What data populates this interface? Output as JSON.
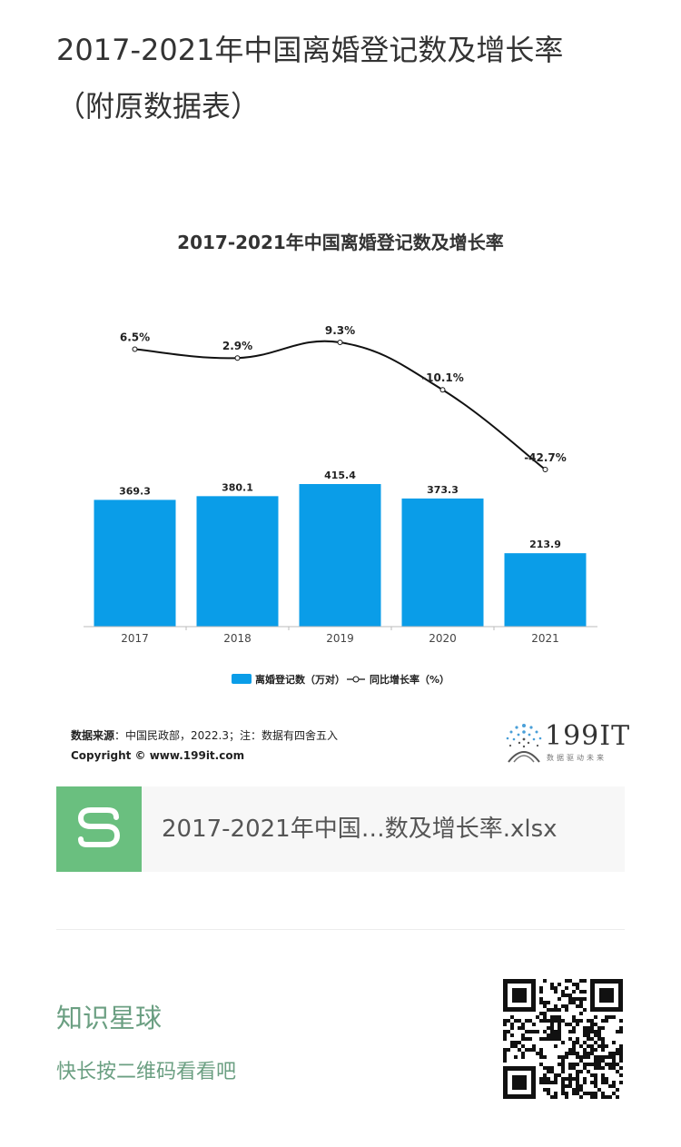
{
  "post": {
    "title_line1": "2017-2021年中国离婚登记数及增长率",
    "title_line2": "（附原数据表）"
  },
  "chart_data": {
    "type": "bar",
    "title": "2017-2021年中国离婚登记数及增长率",
    "categories": [
      "2017",
      "2018",
      "2019",
      "2020",
      "2021"
    ],
    "series": [
      {
        "name": "离婚登记数（万对）",
        "type": "bar",
        "values": [
          369.3,
          380.1,
          415.4,
          373.3,
          213.9
        ],
        "labels": [
          "369.3",
          "380.1",
          "415.4",
          "373.3",
          "213.9"
        ],
        "color": "#0a9de8"
      },
      {
        "name": "同比增长率（%）",
        "type": "line",
        "values": [
          6.5,
          2.9,
          9.3,
          -10.1,
          -42.7
        ],
        "labels": [
          "6.5%",
          "2.9%",
          "9.3%",
          "-10.1%",
          "-42.7%"
        ],
        "color": "#111111"
      }
    ],
    "legend_position": "bottom",
    "grid": false,
    "source": {
      "label": "数据来源",
      "text": "：中国民政部，2022.3；注：数据有四舍五入",
      "copyright": "Copyright © www.199it.com"
    }
  },
  "logo": {
    "name": "199IT",
    "slogan": "数据驱动未来"
  },
  "file": {
    "icon_letter": "S",
    "name": "2017-2021年中国…数及增长率.xlsx",
    "icon_color": "#6abf7f"
  },
  "planet": {
    "title": "知识星球",
    "subtitle": "快长按二维码看看吧",
    "color": "#6b9f82"
  }
}
